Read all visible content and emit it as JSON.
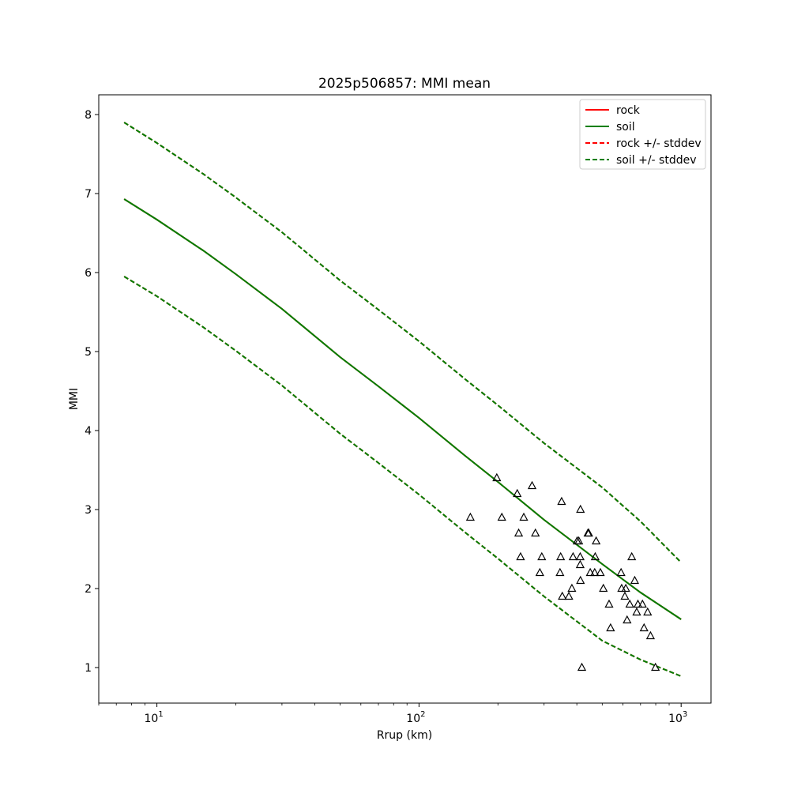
{
  "chart_data": {
    "type": "line",
    "title": "2025p506857: MMI mean",
    "xlabel": "Rrup (km)",
    "ylabel": "MMI",
    "x_scale": "log",
    "xlim": [
      6,
      1300
    ],
    "ylim": [
      0.55,
      8.25
    ],
    "x_ticks": [
      {
        "value": 10,
        "base": "10",
        "exp": "1"
      },
      {
        "value": 100,
        "base": "10",
        "exp": "2"
      },
      {
        "value": 1000,
        "base": "10",
        "exp": "3"
      }
    ],
    "y_ticks": [
      1,
      2,
      3,
      4,
      5,
      6,
      7,
      8
    ],
    "grid": false,
    "legend_position": "top-right",
    "series": [
      {
        "name": "rock",
        "style": "solid",
        "color": "#ff0000",
        "x": [
          7.5,
          10,
          15,
          20,
          30,
          50,
          70,
          100,
          150,
          200,
          300,
          500,
          700,
          1000
        ],
        "y": [
          6.93,
          6.67,
          6.28,
          5.98,
          5.54,
          4.93,
          4.56,
          4.16,
          3.68,
          3.35,
          2.87,
          2.31,
          1.95,
          1.61
        ]
      },
      {
        "name": "soil",
        "style": "solid",
        "color": "#007f00",
        "x": [
          7.5,
          10,
          15,
          20,
          30,
          50,
          70,
          100,
          150,
          200,
          300,
          500,
          700,
          1000
        ],
        "y": [
          6.93,
          6.67,
          6.28,
          5.98,
          5.54,
          4.93,
          4.56,
          4.16,
          3.68,
          3.35,
          2.87,
          2.31,
          1.95,
          1.61
        ]
      },
      {
        "name": "rock +/- stddev",
        "style": "dashed",
        "color": "#ff0000",
        "x": [
          7.5,
          10,
          15,
          20,
          30,
          50,
          70,
          100,
          150,
          200,
          300,
          500,
          700,
          1000
        ],
        "y_upper": [
          7.9,
          7.64,
          7.25,
          6.95,
          6.51,
          5.9,
          5.53,
          5.13,
          4.65,
          4.32,
          3.84,
          3.28,
          2.85,
          2.33
        ],
        "y_lower": [
          5.95,
          5.7,
          5.31,
          5.01,
          4.57,
          3.96,
          3.59,
          3.19,
          2.71,
          2.38,
          1.9,
          1.34,
          1.1,
          0.89
        ]
      },
      {
        "name": "soil +/- stddev",
        "style": "dashed",
        "color": "#007f00",
        "x": [
          7.5,
          10,
          15,
          20,
          30,
          50,
          70,
          100,
          150,
          200,
          300,
          500,
          700,
          1000
        ],
        "y_upper": [
          7.9,
          7.64,
          7.25,
          6.95,
          6.51,
          5.9,
          5.53,
          5.13,
          4.65,
          4.32,
          3.84,
          3.28,
          2.85,
          2.33
        ],
        "y_lower": [
          5.95,
          5.7,
          5.31,
          5.01,
          4.57,
          3.96,
          3.59,
          3.19,
          2.71,
          2.38,
          1.9,
          1.34,
          1.1,
          0.89
        ]
      }
    ],
    "observations": {
      "marker": "open-triangle",
      "color": "#000000",
      "points": [
        [
          157,
          2.9
        ],
        [
          198,
          3.4
        ],
        [
          207,
          2.9
        ],
        [
          237,
          3.2
        ],
        [
          240,
          2.7
        ],
        [
          244,
          2.4
        ],
        [
          251,
          2.9
        ],
        [
          270,
          3.3
        ],
        [
          278,
          2.7
        ],
        [
          289,
          2.2
        ],
        [
          294,
          2.4
        ],
        [
          345,
          2.2
        ],
        [
          347,
          2.4
        ],
        [
          350,
          3.1
        ],
        [
          352,
          1.9
        ],
        [
          373,
          1.9
        ],
        [
          383,
          2.0
        ],
        [
          387,
          2.4
        ],
        [
          401,
          2.6
        ],
        [
          407,
          2.6
        ],
        [
          412,
          2.4
        ],
        [
          412,
          2.3
        ],
        [
          413,
          2.1
        ],
        [
          413,
          3.0
        ],
        [
          418,
          1.0
        ],
        [
          441,
          2.7
        ],
        [
          444,
          2.7
        ],
        [
          450,
          2.2
        ],
        [
          468,
          2.2
        ],
        [
          470,
          2.4
        ],
        [
          474,
          2.6
        ],
        [
          492,
          2.2
        ],
        [
          505,
          2.0
        ],
        [
          531,
          1.8
        ],
        [
          538,
          1.5
        ],
        [
          590,
          2.2
        ],
        [
          593,
          2.0
        ],
        [
          610,
          1.9
        ],
        [
          615,
          2.0
        ],
        [
          622,
          1.6
        ],
        [
          637,
          1.8
        ],
        [
          648,
          2.4
        ],
        [
          665,
          2.1
        ],
        [
          677,
          1.7
        ],
        [
          684,
          1.8
        ],
        [
          712,
          1.8
        ],
        [
          722,
          1.5
        ],
        [
          745,
          1.7
        ],
        [
          764,
          1.4
        ],
        [
          798,
          1.0
        ]
      ]
    }
  }
}
